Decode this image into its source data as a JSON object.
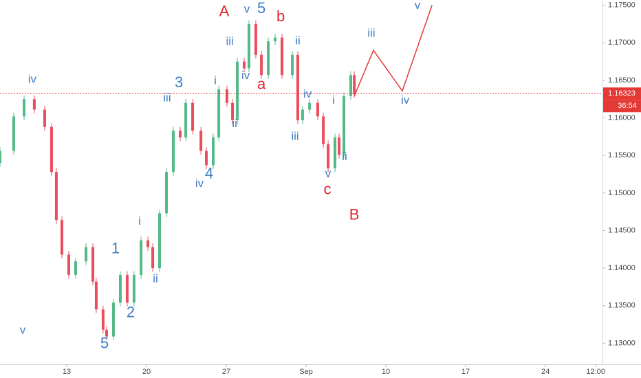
{
  "chart_data": {
    "type": "candlestick",
    "up_color": "#53b987",
    "down_color": "#eb4d5c",
    "grid": false,
    "xlim": [
      0.82,
      38.53
    ],
    "ylim": [
      1.1272,
      1.1757
    ],
    "xticks": [
      {
        "value": 5,
        "label": "13"
      },
      {
        "value": 10,
        "label": "20"
      },
      {
        "value": 15,
        "label": "27"
      },
      {
        "value": 20,
        "label": "Sep"
      },
      {
        "value": 25,
        "label": "10"
      },
      {
        "value": 30,
        "label": "17"
      },
      {
        "value": 35,
        "label": "24"
      },
      {
        "value": 38.15,
        "label": "12:00"
      }
    ],
    "yticks": [
      {
        "value": 1.13,
        "label": "1.13000"
      },
      {
        "value": 1.135,
        "label": "1.13500"
      },
      {
        "value": 1.14,
        "label": "1.14000"
      },
      {
        "value": 1.145,
        "label": "1.14500"
      },
      {
        "value": 1.15,
        "label": "1.15000"
      },
      {
        "value": 1.155,
        "label": "1.15500"
      },
      {
        "value": 1.16,
        "label": "1.16000"
      },
      {
        "value": 1.165,
        "label": "1.16500"
      },
      {
        "value": 1.17,
        "label": "1.17000"
      },
      {
        "value": 1.175,
        "label": "1.17500"
      }
    ],
    "x": [
      0.82,
      1.68,
      2.33,
      2.97,
      3.62,
      4.05,
      4.35,
      4.7,
      5.13,
      5.56,
      6.21,
      6.64,
      6.85,
      7.28,
      7.5,
      7.93,
      8.36,
      8.79,
      9.22,
      9.66,
      10.09,
      10.39,
      10.82,
      11.25,
      11.68,
      12.11,
      12.46,
      12.89,
      13.41,
      13.75,
      14.18,
      14.53,
      15.04,
      15.39,
      15.69,
      16.12,
      16.42,
      16.85,
      17.2,
      17.63,
      18.06,
      18.49,
      19.14,
      19.48,
      19.78,
      20.22,
      20.73,
      21.08,
      21.38,
      21.81,
      22.07,
      22.37,
      22.8,
      23.02
    ],
    "open": [
      1.154,
      1.1556,
      1.1602,
      1.1625,
      1.1611,
      1.1588,
      1.1528,
      1.1464,
      1.1418,
      1.1391,
      1.1409,
      1.1428,
      1.1382,
      1.1345,
      1.1318,
      1.1309,
      1.1354,
      1.1391,
      1.1354,
      1.1391,
      1.1437,
      1.1428,
      1.14,
      1.1473,
      1.1528,
      1.1583,
      1.1574,
      1.162,
      1.1583,
      1.1556,
      1.1537,
      1.1574,
      1.1638,
      1.162,
      1.1597,
      1.1675,
      1.1666,
      1.1725,
      1.1684,
      1.1657,
      1.1702,
      1.1707,
      1.1657,
      1.1684,
      1.1597,
      1.1611,
      1.162,
      1.1602,
      1.1565,
      1.1533,
      1.1574,
      1.1551,
      1.1629,
      1.1657
    ],
    "high": [
      1.1561,
      1.1607,
      1.163,
      1.163,
      1.1616,
      1.1593,
      1.1533,
      1.1469,
      1.1423,
      1.1414,
      1.1433,
      1.1433,
      1.1387,
      1.135,
      1.1323,
      1.1359,
      1.1396,
      1.1396,
      1.1396,
      1.1442,
      1.1442,
      1.1433,
      1.1478,
      1.1533,
      1.1588,
      1.1588,
      1.1625,
      1.1625,
      1.1588,
      1.1561,
      1.1579,
      1.1643,
      1.1643,
      1.1625,
      1.168,
      1.168,
      1.173,
      1.173,
      1.1689,
      1.1707,
      1.1712,
      1.1712,
      1.1689,
      1.1689,
      1.1616,
      1.1625,
      1.1625,
      1.1607,
      1.157,
      1.1579,
      1.1579,
      1.1634,
      1.1662,
      1.1662
    ],
    "low": [
      1.1535,
      1.1551,
      1.1597,
      1.1606,
      1.1583,
      1.1523,
      1.1459,
      1.1413,
      1.1386,
      1.1386,
      1.1404,
      1.1377,
      1.134,
      1.1313,
      1.1304,
      1.1304,
      1.1349,
      1.1349,
      1.1349,
      1.1386,
      1.1423,
      1.1395,
      1.1395,
      1.1468,
      1.1523,
      1.1569,
      1.1569,
      1.1578,
      1.1551,
      1.1532,
      1.1532,
      1.1569,
      1.1615,
      1.1592,
      1.1592,
      1.1661,
      1.1661,
      1.1679,
      1.1652,
      1.1652,
      1.1697,
      1.1652,
      1.1652,
      1.1592,
      1.1592,
      1.1606,
      1.1597,
      1.156,
      1.1528,
      1.1528,
      1.1546,
      1.1546,
      1.1624,
      1.1627
    ],
    "close": [
      1.1556,
      1.1602,
      1.1625,
      1.1611,
      1.1588,
      1.1528,
      1.1464,
      1.1418,
      1.1391,
      1.1409,
      1.1428,
      1.1382,
      1.1345,
      1.1318,
      1.1309,
      1.1354,
      1.1391,
      1.1354,
      1.1391,
      1.1437,
      1.1428,
      1.14,
      1.1473,
      1.1528,
      1.1583,
      1.1574,
      1.162,
      1.1583,
      1.1556,
      1.1537,
      1.1574,
      1.1638,
      1.162,
      1.1597,
      1.1675,
      1.1666,
      1.1725,
      1.1684,
      1.1657,
      1.1702,
      1.1707,
      1.1657,
      1.1684,
      1.1597,
      1.1611,
      1.162,
      1.1602,
      1.1565,
      1.1533,
      1.1574,
      1.1551,
      1.1629,
      1.1657,
      1.1632
    ],
    "projection": {
      "color": "#e53935",
      "x": [
        23.02,
        24.22,
        26.03,
        27.89
      ],
      "values": [
        1.1629,
        1.169,
        1.1636,
        1.175
      ]
    },
    "last_price": {
      "value": 1.16323,
      "label": "1.16323",
      "color": "#e53935"
    },
    "countdown": "36:54",
    "annotations": [
      {
        "text": "iv",
        "x": 2.84,
        "y": 1.1651,
        "color": "#3f7dc6"
      },
      {
        "text": "v",
        "x": 2.24,
        "y": 1.1317,
        "color": "#3f7dc6"
      },
      {
        "text": "5",
        "x": 7.37,
        "y": 1.1299,
        "color": "#3f7dc6"
      },
      {
        "text": "1",
        "x": 8.06,
        "y": 1.1425,
        "color": "#3f7dc6"
      },
      {
        "text": "2",
        "x": 9.01,
        "y": 1.134,
        "color": "#3f7dc6"
      },
      {
        "text": "i",
        "x": 9.57,
        "y": 1.1462,
        "color": "#3f7dc6"
      },
      {
        "text": "ii",
        "x": 10.56,
        "y": 1.1385,
        "color": "#3f7dc6"
      },
      {
        "text": "iii",
        "x": 11.29,
        "y": 1.1626,
        "color": "#3f7dc6"
      },
      {
        "text": "3",
        "x": 12.03,
        "y": 1.1646,
        "color": "#3f7dc6"
      },
      {
        "text": "iv",
        "x": 13.32,
        "y": 1.1512,
        "color": "#3f7dc6"
      },
      {
        "text": "4",
        "x": 13.92,
        "y": 1.1525,
        "color": "#3f7dc6"
      },
      {
        "text": "i",
        "x": 14.31,
        "y": 1.1649,
        "color": "#3f7dc6"
      },
      {
        "text": "ii",
        "x": 15.52,
        "y": 1.1592,
        "color": "#3f7dc6"
      },
      {
        "text": "iii",
        "x": 15.22,
        "y": 1.1701,
        "color": "#3f7dc6"
      },
      {
        "text": "iv",
        "x": 16.21,
        "y": 1.1656,
        "color": "#3f7dc6"
      },
      {
        "text": "A",
        "x": 14.87,
        "y": 1.1741,
        "color": "#e0262b"
      },
      {
        "text": "v",
        "x": 16.29,
        "y": 1.1744,
        "color": "#3f7dc6"
      },
      {
        "text": "5",
        "x": 17.2,
        "y": 1.1745,
        "color": "#3f7dc6"
      },
      {
        "text": "b",
        "x": 18.41,
        "y": 1.1734,
        "color": "#e0262b"
      },
      {
        "text": "a",
        "x": 17.2,
        "y": 1.1644,
        "color": "#e0262b"
      },
      {
        "text": "ii",
        "x": 19.48,
        "y": 1.1702,
        "color": "#3f7dc6"
      },
      {
        "text": "iv",
        "x": 20.09,
        "y": 1.1631,
        "color": "#3f7dc6"
      },
      {
        "text": "iii",
        "x": 19.31,
        "y": 1.1575,
        "color": "#3f7dc6"
      },
      {
        "text": "i",
        "x": 21.72,
        "y": 1.1623,
        "color": "#3f7dc6"
      },
      {
        "text": "v",
        "x": 21.38,
        "y": 1.1525,
        "color": "#3f7dc6"
      },
      {
        "text": "ii",
        "x": 22.41,
        "y": 1.1548,
        "color": "#3f7dc6"
      },
      {
        "text": "c",
        "x": 21.34,
        "y": 1.1504,
        "color": "#e0262b"
      },
      {
        "text": "B",
        "x": 23.02,
        "y": 1.147,
        "color": "#e0262b"
      },
      {
        "text": "iii",
        "x": 24.09,
        "y": 1.1712,
        "color": "#3f7dc6"
      },
      {
        "text": "iv",
        "x": 26.21,
        "y": 1.1623,
        "color": "#3f7dc6"
      },
      {
        "text": "v",
        "x": 26.98,
        "y": 1.1749,
        "color": "#3f7dc6"
      }
    ]
  }
}
